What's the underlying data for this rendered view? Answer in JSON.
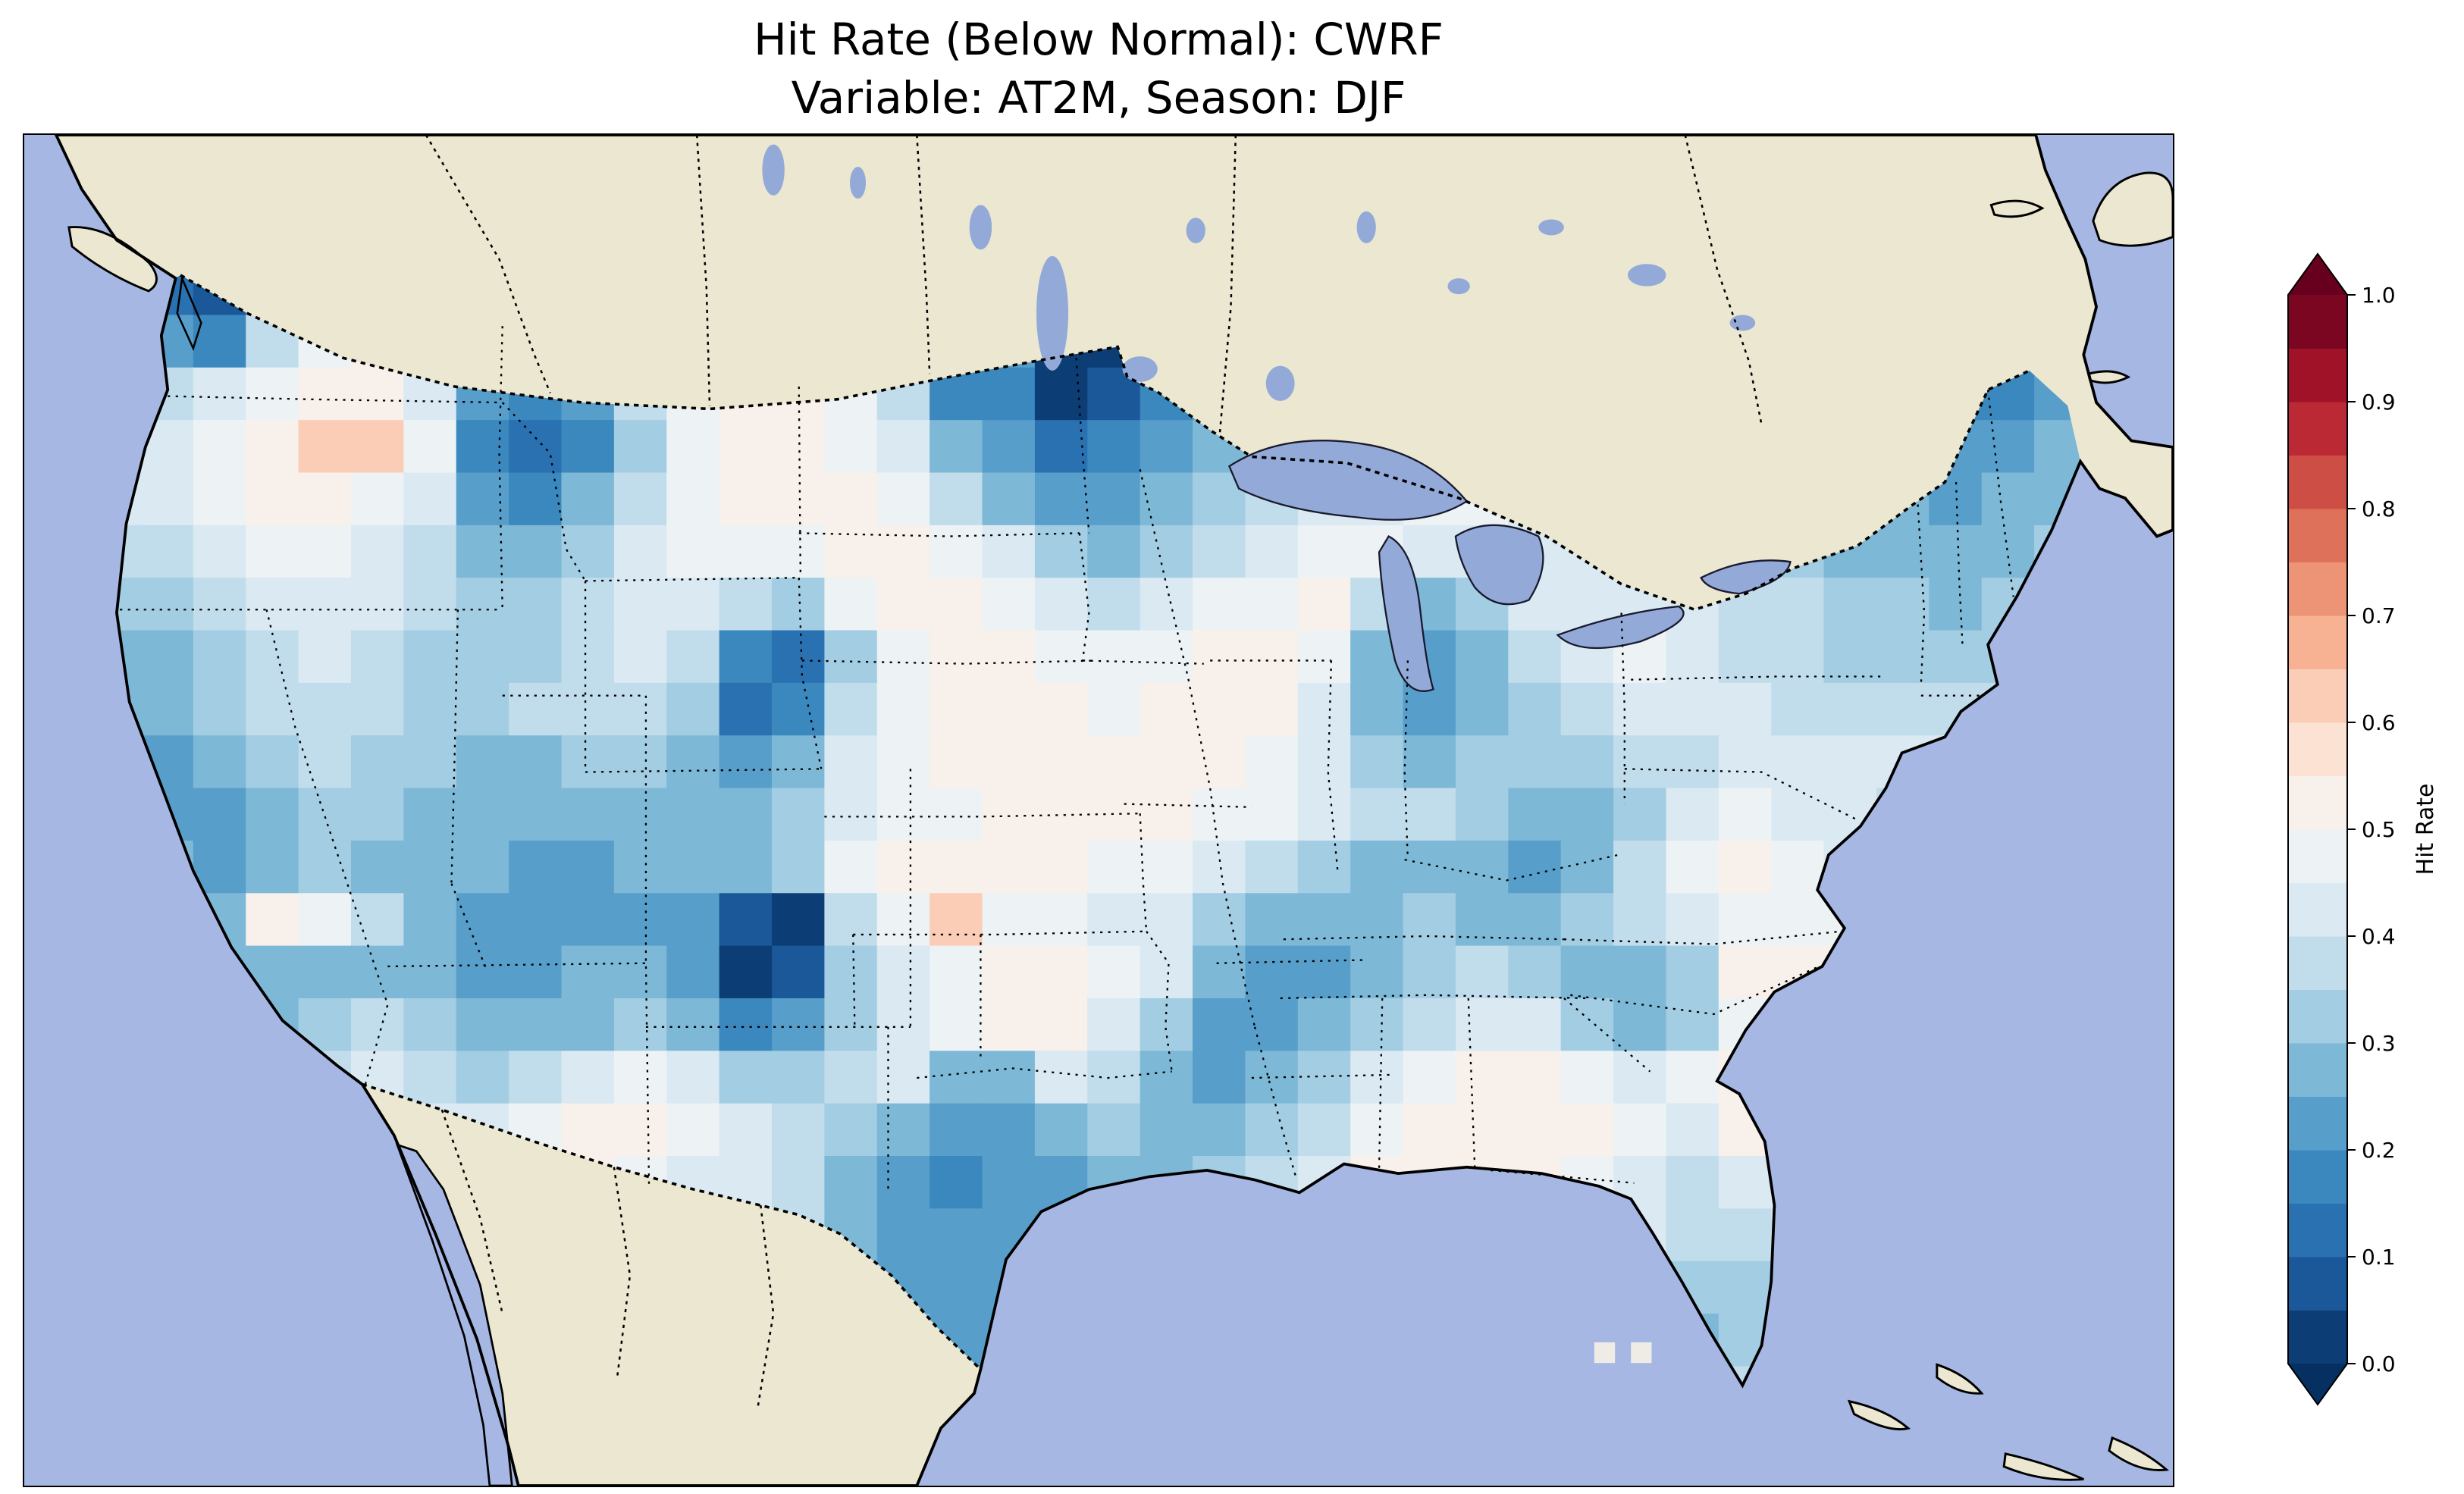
{
  "header": {
    "line1": "Hit Rate (Below Normal): CWRF",
    "line2": "Variable: AT2M, Season: DJF"
  },
  "colorbar": {
    "label": "Hit Rate",
    "ticks": [
      "0.0",
      "0.1",
      "0.2",
      "0.3",
      "0.4",
      "0.5",
      "0.6",
      "0.7",
      "0.8",
      "0.9",
      "1.0"
    ],
    "min": 0.0,
    "max": 1.0,
    "band_step": 0.05,
    "band_colors": [
      "#0c3d74",
      "#1a5899",
      "#2a71b2",
      "#3a88bd",
      "#579fca",
      "#7eb8d7",
      "#a2cde2",
      "#c1ddeb",
      "#dae9f2",
      "#edf2f5",
      "#f8f0eb",
      "#fbe2d3",
      "#fbcdb6",
      "#f6b293",
      "#ec9475",
      "#de715a",
      "#cd4e44",
      "#bb2a34",
      "#9f1228",
      "#7a0622"
    ],
    "under_color": "#053061",
    "over_color": "#67001f"
  },
  "map_colors": {
    "ocean": "#a6b7e3",
    "land": "#ebe7d1",
    "lake": "#93aad9",
    "line": "#000000",
    "stray_cell": "#efece6"
  },
  "chart_data": {
    "type": "heatmap",
    "title": "Hit Rate (Below Normal): CWRF",
    "subtitle": "Variable: AT2M, Season: DJF",
    "metric": "Hit Rate (Below Normal)",
    "model": "CWRF",
    "variable": "AT2M",
    "season": "DJF",
    "colorbar_label": "Hit Rate",
    "value_range": [
      0.0,
      1.0
    ],
    "colormap": "RdBu_r (discrete, 0.05 steps, extend both)",
    "region": "Contiguous United States",
    "grid": {
      "rows": 22,
      "cols": 38,
      "values": [
        [
          0.45,
          0.15,
          0.1,
          0.3,
          0.45,
          0.5,
          0.45,
          0.4,
          0.35,
          0.4,
          0.5,
          0.5,
          0.5,
          0.5,
          0.5,
          0.45,
          0.03,
          0.3,
          0.03,
          0.03,
          0.25,
          0.3,
          0.35,
          0.4,
          0.45,
          0.45,
          0.45,
          0.45,
          0.45,
          0.4,
          0.4,
          0.4,
          0.35,
          0.3,
          0.25,
          0.2,
          0.15,
          0.2
        ],
        [
          0.45,
          0.25,
          0.2,
          0.4,
          0.5,
          0.55,
          0.5,
          0.35,
          0.3,
          0.35,
          0.45,
          0.5,
          0.5,
          0.5,
          0.45,
          0.35,
          0.1,
          0.25,
          0.03,
          0.03,
          0.2,
          0.25,
          0.3,
          0.35,
          0.4,
          0.45,
          0.45,
          0.45,
          0.45,
          0.4,
          0.4,
          0.35,
          0.3,
          0.3,
          0.25,
          0.2,
          0.15,
          0.2
        ],
        [
          0.45,
          0.4,
          0.45,
          0.5,
          0.55,
          0.55,
          0.45,
          0.25,
          0.2,
          0.25,
          0.4,
          0.5,
          0.55,
          0.55,
          0.5,
          0.4,
          0.2,
          0.2,
          0.03,
          0.1,
          0.2,
          0.25,
          0.3,
          0.35,
          0.4,
          0.45,
          0.45,
          0.4,
          0.4,
          0.4,
          0.35,
          0.35,
          0.3,
          0.25,
          0.2,
          0.2,
          0.2,
          0.25
        ],
        [
          0.45,
          0.45,
          0.5,
          0.55,
          0.65,
          0.65,
          0.5,
          0.2,
          0.15,
          0.2,
          0.35,
          0.5,
          0.55,
          0.55,
          0.5,
          0.45,
          0.3,
          0.25,
          0.15,
          0.2,
          0.25,
          0.3,
          0.35,
          0.4,
          0.45,
          0.5,
          0.45,
          0.4,
          0.35,
          0.35,
          0.35,
          0.3,
          0.3,
          0.25,
          0.25,
          0.25,
          0.25,
          0.3
        ],
        [
          0.45,
          0.45,
          0.5,
          0.55,
          0.55,
          0.5,
          0.45,
          0.25,
          0.2,
          0.3,
          0.4,
          0.5,
          0.55,
          0.55,
          0.55,
          0.5,
          0.4,
          0.3,
          0.25,
          0.25,
          0.3,
          0.35,
          0.4,
          0.45,
          0.45,
          0.5,
          0.5,
          0.45,
          0.4,
          0.4,
          0.4,
          0.35,
          0.3,
          0.3,
          0.3,
          0.25,
          0.3,
          0.3
        ],
        [
          0.4,
          0.4,
          0.45,
          0.5,
          0.5,
          0.45,
          0.4,
          0.3,
          0.3,
          0.35,
          0.45,
          0.5,
          0.5,
          0.5,
          0.55,
          0.55,
          0.5,
          0.45,
          0.35,
          0.3,
          0.35,
          0.4,
          0.45,
          0.5,
          0.5,
          0.45,
          0.45,
          0.45,
          0.45,
          0.45,
          0.4,
          0.4,
          0.35,
          0.3,
          0.3,
          0.3,
          0.3,
          0.35
        ],
        [
          0.35,
          0.35,
          0.4,
          0.45,
          0.45,
          0.45,
          0.4,
          0.35,
          0.35,
          0.4,
          0.45,
          0.45,
          0.4,
          0.35,
          0.5,
          0.55,
          0.55,
          0.5,
          0.45,
          0.4,
          0.45,
          0.5,
          0.5,
          0.55,
          0.4,
          0.3,
          0.35,
          0.45,
          0.45,
          0.45,
          0.45,
          0.4,
          0.4,
          0.35,
          0.35,
          0.3,
          0.35,
          0.35
        ],
        [
          0.3,
          0.3,
          0.35,
          0.4,
          0.45,
          0.4,
          0.35,
          0.35,
          0.35,
          0.4,
          0.45,
          0.4,
          0.2,
          0.15,
          0.35,
          0.5,
          0.55,
          0.55,
          0.5,
          0.5,
          0.5,
          0.55,
          0.55,
          0.5,
          0.3,
          0.25,
          0.3,
          0.4,
          0.45,
          0.5,
          0.45,
          0.4,
          0.4,
          0.35,
          0.35,
          0.35,
          0.35,
          0.4
        ],
        [
          0.3,
          0.3,
          0.35,
          0.4,
          0.4,
          0.4,
          0.35,
          0.35,
          0.4,
          0.4,
          0.4,
          0.35,
          0.15,
          0.2,
          0.4,
          0.5,
          0.55,
          0.55,
          0.55,
          0.5,
          0.55,
          0.55,
          0.55,
          0.45,
          0.3,
          0.25,
          0.3,
          0.35,
          0.4,
          0.45,
          0.45,
          0.45,
          0.4,
          0.4,
          0.4,
          0.4,
          0.4,
          0.4
        ],
        [
          0.25,
          0.25,
          0.3,
          0.35,
          0.4,
          0.35,
          0.35,
          0.3,
          0.3,
          0.35,
          0.35,
          0.3,
          0.25,
          0.3,
          0.45,
          0.5,
          0.55,
          0.55,
          0.55,
          0.55,
          0.55,
          0.55,
          0.5,
          0.45,
          0.35,
          0.3,
          0.35,
          0.35,
          0.35,
          0.4,
          0.4,
          0.45,
          0.45,
          0.45,
          0.45,
          0.45,
          0.45,
          0.45
        ],
        [
          0.3,
          0.25,
          0.25,
          0.3,
          0.35,
          0.35,
          0.3,
          0.3,
          0.3,
          0.3,
          0.3,
          0.3,
          0.3,
          0.35,
          0.45,
          0.5,
          0.5,
          0.55,
          0.55,
          0.55,
          0.55,
          0.5,
          0.5,
          0.45,
          0.4,
          0.4,
          0.35,
          0.3,
          0.3,
          0.35,
          0.45,
          0.5,
          0.45,
          0.45,
          0.4,
          0.45,
          0.45,
          0.45
        ],
        [
          0.35,
          0.3,
          0.25,
          0.3,
          0.35,
          0.3,
          0.3,
          0.3,
          0.25,
          0.25,
          0.3,
          0.3,
          0.3,
          0.35,
          0.5,
          0.55,
          0.55,
          0.55,
          0.55,
          0.5,
          0.5,
          0.45,
          0.4,
          0.35,
          0.3,
          0.3,
          0.3,
          0.25,
          0.3,
          0.4,
          0.5,
          0.55,
          0.5,
          0.45,
          0.45,
          0.45,
          0.45,
          0.45
        ],
        [
          0.4,
          0.35,
          0.3,
          0.55,
          0.5,
          0.4,
          0.3,
          0.25,
          0.25,
          0.25,
          0.25,
          0.25,
          0.1,
          0.03,
          0.4,
          0.5,
          0.65,
          0.5,
          0.5,
          0.45,
          0.45,
          0.35,
          0.3,
          0.3,
          0.3,
          0.35,
          0.3,
          0.3,
          0.35,
          0.4,
          0.45,
          0.5,
          0.5,
          0.5,
          0.5,
          0.5,
          0.5,
          0.5
        ],
        [
          0.45,
          0.4,
          0.3,
          0.3,
          0.3,
          0.3,
          0.3,
          0.25,
          0.25,
          0.3,
          0.3,
          0.25,
          0.03,
          0.1,
          0.35,
          0.45,
          0.5,
          0.55,
          0.55,
          0.5,
          0.45,
          0.3,
          0.25,
          0.25,
          0.3,
          0.35,
          0.4,
          0.35,
          0.3,
          0.3,
          0.35,
          0.55,
          0.55,
          0.55,
          0.55,
          0.5,
          0.5,
          0.5
        ],
        [
          0.5,
          0.45,
          0.35,
          0.3,
          0.35,
          0.4,
          0.35,
          0.3,
          0.3,
          0.3,
          0.35,
          0.3,
          0.2,
          0.25,
          0.35,
          0.45,
          0.5,
          0.55,
          0.55,
          0.45,
          0.35,
          0.25,
          0.25,
          0.3,
          0.35,
          0.4,
          0.45,
          0.45,
          0.35,
          0.3,
          0.35,
          0.5,
          0.55,
          0.55,
          0.5,
          0.5,
          0.5,
          0.5
        ],
        [
          0.5,
          0.5,
          0.4,
          0.35,
          0.4,
          0.45,
          0.4,
          0.35,
          0.4,
          0.45,
          0.5,
          0.45,
          0.35,
          0.35,
          0.4,
          0.45,
          0.3,
          0.3,
          0.45,
          0.4,
          0.3,
          0.25,
          0.3,
          0.35,
          0.45,
          0.5,
          0.55,
          0.55,
          0.5,
          0.45,
          0.5,
          0.55,
          0.55,
          0.55,
          0.5,
          0.5,
          0.5,
          0.5
        ],
        [
          0.5,
          0.5,
          0.45,
          0.4,
          0.45,
          0.5,
          0.45,
          0.45,
          0.5,
          0.55,
          0.55,
          0.5,
          0.45,
          0.4,
          0.35,
          0.3,
          0.25,
          0.25,
          0.3,
          0.35,
          0.3,
          0.3,
          0.35,
          0.4,
          0.5,
          0.55,
          0.55,
          0.55,
          0.55,
          0.5,
          0.45,
          0.55,
          0.55,
          0.5,
          0.5,
          0.5,
          0.5,
          0.5
        ],
        [
          0.5,
          0.5,
          0.5,
          0.45,
          0.5,
          0.5,
          0.5,
          0.5,
          0.55,
          0.55,
          0.5,
          0.45,
          0.45,
          0.4,
          0.3,
          0.25,
          0.2,
          0.25,
          0.25,
          0.3,
          0.3,
          0.35,
          0.4,
          0.45,
          0.55,
          0.55,
          0.55,
          0.55,
          0.5,
          0.45,
          0.4,
          0.45,
          0.5,
          0.5,
          0.5,
          0.5,
          0.5,
          0.5
        ],
        [
          0.5,
          0.5,
          0.5,
          0.5,
          0.5,
          0.5,
          0.5,
          0.5,
          0.5,
          0.5,
          0.5,
          0.45,
          0.45,
          0.4,
          0.3,
          0.25,
          0.25,
          0.25,
          0.25,
          0.25,
          0.3,
          0.3,
          0.3,
          0.3,
          0.35,
          0.4,
          0.45,
          0.5,
          0.5,
          0.45,
          0.4,
          0.4,
          0.45,
          0.5,
          0.5,
          0.5,
          0.5,
          0.5
        ],
        [
          0.5,
          0.5,
          0.5,
          0.5,
          0.5,
          0.5,
          0.5,
          0.5,
          0.5,
          0.5,
          0.5,
          0.5,
          0.45,
          0.4,
          0.3,
          0.25,
          0.25,
          0.25,
          0.25,
          0.3,
          0.3,
          0.3,
          0.3,
          0.3,
          0.3,
          0.3,
          0.35,
          0.4,
          0.45,
          0.4,
          0.35,
          0.35,
          0.45,
          0.5,
          0.5,
          0.5,
          0.5,
          0.5
        ],
        [
          0.5,
          0.5,
          0.5,
          0.5,
          0.5,
          0.5,
          0.5,
          0.5,
          0.5,
          0.5,
          0.5,
          0.5,
          0.5,
          0.45,
          0.35,
          0.3,
          0.25,
          0.25,
          0.3,
          0.35,
          0.4,
          0.45,
          0.45,
          0.45,
          0.45,
          0.45,
          0.45,
          0.45,
          0.45,
          0.35,
          0.3,
          0.35,
          0.45,
          0.5,
          0.5,
          0.5,
          0.5,
          0.5
        ],
        [
          0.5,
          0.5,
          0.5,
          0.5,
          0.5,
          0.5,
          0.5,
          0.5,
          0.5,
          0.5,
          0.5,
          0.5,
          0.5,
          0.5,
          0.4,
          0.35,
          0.3,
          0.3,
          0.35,
          0.4,
          0.45,
          0.45,
          0.45,
          0.45,
          0.45,
          0.45,
          0.45,
          0.45,
          0.45,
          0.4,
          0.35,
          0.4,
          0.45,
          0.5,
          0.5,
          0.5,
          0.5,
          0.5
        ]
      ]
    }
  }
}
